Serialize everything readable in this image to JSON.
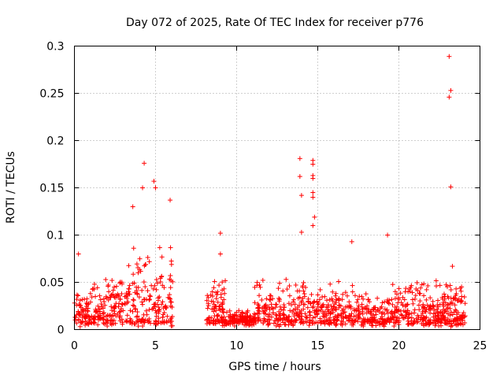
{
  "chart_data": {
    "type": "scatter",
    "title": "Day 072 of 2025, Rate Of TEC Index for receiver p776",
    "xlabel": "GPS time / hours",
    "ylabel": "ROTI / TECUs",
    "xlim": [
      0,
      25
    ],
    "ylim": [
      0,
      0.3
    ],
    "grid": true,
    "marker": "+",
    "color": "#ff0000",
    "x_ticks": [
      0,
      5,
      10,
      15,
      20,
      25
    ],
    "x_tick_labels": [
      "0",
      "5",
      "10",
      "15",
      "20",
      "25"
    ],
    "y_ticks": [
      0,
      0.05,
      0.1,
      0.15,
      0.2,
      0.25,
      0.3
    ],
    "y_tick_labels": [
      "0",
      "0.05",
      "0.1",
      "0.15",
      "0.2",
      "0.25",
      "0.3"
    ],
    "series": [
      {
        "name": "ROTI",
        "data_gaps_hours": [
          [
            6.1,
            8.1
          ]
        ],
        "notable_points": [
          {
            "x": 0.25,
            "y": 0.08
          },
          {
            "x": 4.3,
            "y": 0.176
          },
          {
            "x": 4.2,
            "y": 0.15
          },
          {
            "x": 4.9,
            "y": 0.157
          },
          {
            "x": 5.0,
            "y": 0.15
          },
          {
            "x": 5.9,
            "y": 0.137
          },
          {
            "x": 3.6,
            "y": 0.13
          },
          {
            "x": 9.0,
            "y": 0.102
          },
          {
            "x": 9.0,
            "y": 0.08
          },
          {
            "x": 13.9,
            "y": 0.181
          },
          {
            "x": 13.9,
            "y": 0.162
          },
          {
            "x": 14.0,
            "y": 0.142
          },
          {
            "x": 14.0,
            "y": 0.103
          },
          {
            "x": 14.7,
            "y": 0.179
          },
          {
            "x": 14.7,
            "y": 0.175
          },
          {
            "x": 14.7,
            "y": 0.163
          },
          {
            "x": 14.7,
            "y": 0.16
          },
          {
            "x": 14.7,
            "y": 0.145
          },
          {
            "x": 14.7,
            "y": 0.14
          },
          {
            "x": 14.8,
            "y": 0.119
          },
          {
            "x": 14.7,
            "y": 0.11
          },
          {
            "x": 17.1,
            "y": 0.093
          },
          {
            "x": 19.3,
            "y": 0.1
          },
          {
            "x": 23.1,
            "y": 0.289
          },
          {
            "x": 23.2,
            "y": 0.253
          },
          {
            "x": 23.1,
            "y": 0.246
          },
          {
            "x": 23.2,
            "y": 0.151
          },
          {
            "x": 23.3,
            "y": 0.067
          }
        ]
      }
    ]
  }
}
